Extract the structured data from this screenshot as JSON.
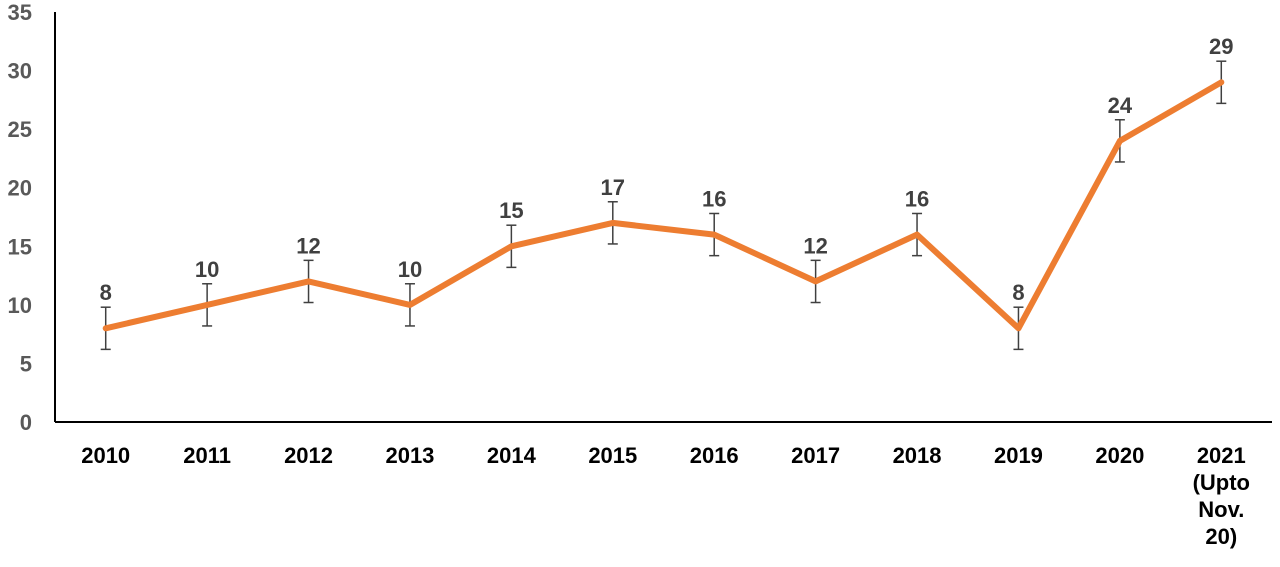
{
  "chart_data": {
    "type": "line",
    "categories": [
      "2010",
      "2011",
      "2012",
      "2013",
      "2014",
      "2015",
      "2016",
      "2017",
      "2018",
      "2019",
      "2020",
      "2021 (Upto Nov. 20)"
    ],
    "category_label_lines": [
      [
        "2010"
      ],
      [
        "2011"
      ],
      [
        "2012"
      ],
      [
        "2013"
      ],
      [
        "2014"
      ],
      [
        "2015"
      ],
      [
        "2016"
      ],
      [
        "2017"
      ],
      [
        "2018"
      ],
      [
        "2019"
      ],
      [
        "2020"
      ],
      [
        "2021",
        "(Upto",
        "Nov.",
        "20)"
      ]
    ],
    "series": [
      {
        "values": [
          8,
          10,
          12,
          10,
          15,
          17,
          16,
          12,
          16,
          8,
          24,
          29
        ],
        "error": [
          1.8,
          1.8,
          1.8,
          1.8,
          1.8,
          1.8,
          1.8,
          1.8,
          1.8,
          1.8,
          1.8,
          1.8
        ],
        "color": "#ED7D31"
      }
    ],
    "data_labels": [
      "8",
      "10",
      "12",
      "10",
      "15",
      "17",
      "16",
      "12",
      "16",
      "8",
      "24",
      "29"
    ],
    "y_ticks": [
      "0",
      "5",
      "10",
      "15",
      "20",
      "25",
      "30",
      "35"
    ],
    "ylim": [
      0,
      35
    ],
    "title": "",
    "xlabel": "",
    "ylabel": "",
    "grid": false,
    "legend": "none"
  },
  "colors": {
    "line": "#ED7D31",
    "axis": "#000000",
    "error_bar": "#404040",
    "tick_text": "#595959",
    "category_text": "#000000",
    "data_label_text": "#404040"
  }
}
